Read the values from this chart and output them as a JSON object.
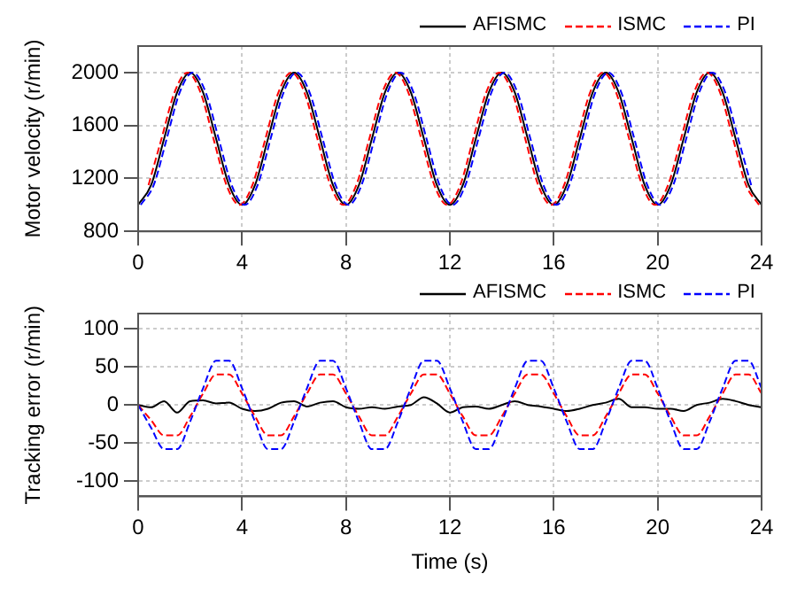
{
  "chart_data": [
    {
      "type": "line",
      "ylabel": "Motor velocity (r/min)",
      "x": [
        0,
        0.5,
        1,
        1.5,
        2,
        2.5,
        3,
        3.5,
        4,
        4.5,
        5,
        5.5,
        6,
        6.5,
        7,
        7.5,
        8,
        8.5,
        9,
        9.5,
        10,
        10.5,
        11,
        11.5,
        12,
        12.5,
        13,
        13.5,
        14,
        14.5,
        15,
        15.5,
        16,
        16.5,
        17,
        17.5,
        18,
        18.5,
        19,
        19.5,
        20,
        20.5,
        21,
        21.5,
        22,
        22.5,
        23,
        23.5,
        24
      ],
      "series": [
        {
          "name": "AFISMC",
          "color": "#000000",
          "line_style": "solid",
          "values": [
            1000,
            1150,
            1500,
            1850,
            2000,
            1850,
            1500,
            1150,
            1000,
            1150,
            1500,
            1850,
            2000,
            1850,
            1500,
            1150,
            1000,
            1150,
            1500,
            1850,
            2000,
            1850,
            1500,
            1150,
            1000,
            1150,
            1500,
            1850,
            2000,
            1850,
            1500,
            1150,
            1000,
            1150,
            1500,
            1850,
            2000,
            1850,
            1500,
            1150,
            1000,
            1150,
            1500,
            1850,
            2000,
            1850,
            1500,
            1150,
            1000
          ]
        },
        {
          "name": "ISMC",
          "color": "#ff0000",
          "line_style": "dashed",
          "x": [
            0.4,
            0.9,
            1.4,
            1.9,
            2.4,
            2.9,
            3.4,
            3.9,
            4.4,
            4.9,
            5.4,
            5.9,
            6.4,
            6.9,
            7.4,
            7.9,
            8.4,
            8.9,
            9.4,
            9.9,
            10.4,
            10.9,
            11.4,
            11.9,
            12.4,
            12.9,
            13.4,
            13.9,
            14.4,
            14.9,
            15.4,
            15.9,
            16.4,
            16.9,
            17.4,
            17.9,
            18.4,
            18.9,
            19.4,
            19.9,
            20.4,
            20.9,
            21.4,
            21.9,
            22.4,
            22.9,
            23.4,
            23.9
          ],
          "values": [
            1150,
            1500,
            1850,
            2000,
            1850,
            1500,
            1150,
            1000,
            1150,
            1500,
            1850,
            2000,
            1850,
            1500,
            1150,
            1000,
            1150,
            1500,
            1850,
            2000,
            1850,
            1500,
            1150,
            1000,
            1150,
            1500,
            1850,
            2000,
            1850,
            1500,
            1150,
            1000,
            1150,
            1500,
            1850,
            2000,
            1850,
            1500,
            1150,
            1000,
            1150,
            1500,
            1850,
            2000,
            1850,
            1500,
            1150,
            1000
          ]
        },
        {
          "name": "PI",
          "color": "#0000ff",
          "line_style": "dashed",
          "x": [
            0.1,
            0.6,
            1.1,
            1.6,
            2.1,
            2.6,
            3.1,
            3.6,
            4.1,
            4.6,
            5.1,
            5.6,
            6.1,
            6.6,
            7.1,
            7.6,
            8.1,
            8.6,
            9.1,
            9.6,
            10.1,
            10.6,
            11.1,
            11.6,
            12.1,
            12.6,
            13.1,
            13.6,
            14.1,
            14.6,
            15.1,
            15.6,
            16.1,
            16.6,
            17.1,
            17.6,
            18.1,
            18.6,
            19.1,
            19.6,
            20.1,
            20.6,
            21.1,
            21.6,
            22.1,
            22.6,
            23.1,
            23.6
          ],
          "values": [
            1000,
            1150,
            1500,
            1850,
            2000,
            1850,
            1500,
            1150,
            1000,
            1150,
            1500,
            1850,
            2000,
            1850,
            1500,
            1150,
            1000,
            1150,
            1500,
            1850,
            2000,
            1850,
            1500,
            1150,
            1000,
            1150,
            1500,
            1850,
            2000,
            1850,
            1500,
            1150,
            1000,
            1150,
            1500,
            1850,
            2000,
            1850,
            1500,
            1150,
            1000,
            1150,
            1500,
            1850,
            2000,
            1850,
            1500,
            1150
          ]
        }
      ],
      "xlim": [
        0,
        24
      ],
      "xticks": [
        0,
        4,
        8,
        12,
        16,
        20,
        24
      ],
      "ylim": [
        800,
        2200
      ],
      "yticks": [
        800,
        1200,
        1600,
        2000
      ],
      "grid": true,
      "legend": "top right"
    },
    {
      "type": "line",
      "xlabel": "Time (s)",
      "ylabel": "Tracking error (r/min)",
      "x": [
        0,
        0.5,
        1,
        1.5,
        2,
        2.5,
        3,
        3.5,
        4,
        4.5,
        5,
        5.5,
        6,
        6.5,
        7,
        7.5,
        8,
        8.5,
        9,
        9.5,
        10,
        10.5,
        11,
        11.5,
        12,
        12.5,
        13,
        13.5,
        14,
        14.5,
        15,
        15.5,
        16,
        16.5,
        17,
        17.5,
        18,
        18.5,
        19,
        19.5,
        20,
        20.5,
        21,
        21.5,
        22,
        22.5,
        23,
        23.5,
        24
      ],
      "series": [
        {
          "name": "AFISMC",
          "color": "#000000",
          "line_style": "solid",
          "values": [
            0,
            -3,
            5,
            -10,
            5,
            6,
            2,
            3,
            -5,
            -8,
            -5,
            3,
            5,
            -2,
            3,
            5,
            -3,
            -5,
            -3,
            -5,
            -2,
            0,
            10,
            2,
            -10,
            -3,
            -2,
            -5,
            0,
            5,
            0,
            -2,
            -5,
            -8,
            -5,
            0,
            3,
            8,
            -3,
            -3,
            -5,
            -5,
            -8,
            0,
            3,
            8,
            5,
            0,
            -3
          ]
        },
        {
          "name": "ISMC",
          "color": "#ff0000",
          "line_style": "dashed",
          "values": [
            0,
            -20,
            -40,
            -40,
            -15,
            15,
            40,
            40,
            15,
            -15,
            -40,
            -40,
            -15,
            15,
            40,
            40,
            15,
            -15,
            -40,
            -40,
            -15,
            15,
            40,
            40,
            15,
            -15,
            -40,
            -40,
            -15,
            15,
            40,
            40,
            15,
            -15,
            -40,
            -40,
            -15,
            15,
            40,
            40,
            15,
            -15,
            -40,
            -40,
            -15,
            15,
            40,
            40,
            15
          ]
        },
        {
          "name": "PI",
          "color": "#0000ff",
          "line_style": "dashed",
          "values": [
            0,
            -30,
            -58,
            -58,
            -22,
            22,
            58,
            58,
            22,
            -22,
            -58,
            -58,
            -22,
            22,
            58,
            58,
            22,
            -22,
            -58,
            -58,
            -22,
            22,
            58,
            58,
            22,
            -22,
            -58,
            -58,
            -22,
            22,
            58,
            58,
            22,
            -22,
            -58,
            -58,
            -22,
            22,
            58,
            58,
            22,
            -22,
            -58,
            -58,
            -22,
            22,
            58,
            58,
            22
          ]
        }
      ],
      "xlim": [
        0,
        24
      ],
      "xticks": [
        0,
        4,
        8,
        12,
        16,
        20,
        24
      ],
      "ylim": [
        -120,
        120
      ],
      "yticks": [
        -100,
        -50,
        0,
        50,
        100
      ],
      "grid": true,
      "legend": "top right"
    }
  ]
}
